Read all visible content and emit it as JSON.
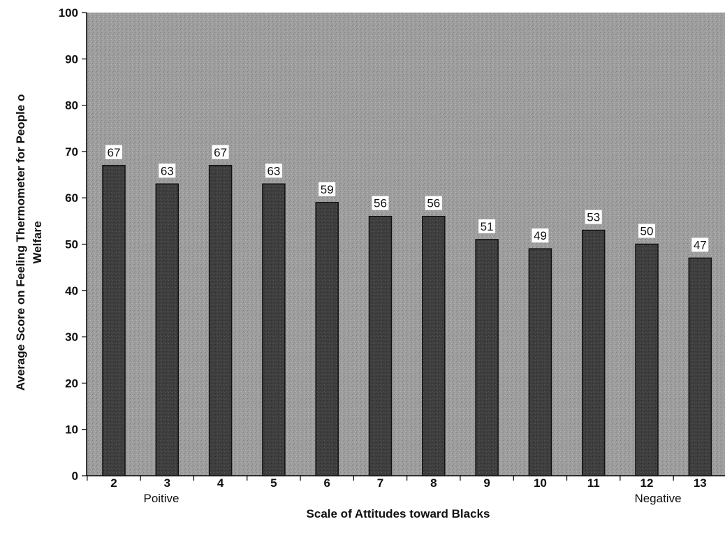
{
  "chart_data": {
    "type": "bar",
    "categories": [
      "2",
      "3",
      "4",
      "5",
      "6",
      "7",
      "8",
      "9",
      "10",
      "11",
      "12",
      "13"
    ],
    "values": [
      67,
      63,
      67,
      63,
      59,
      56,
      56,
      51,
      49,
      53,
      50,
      47
    ],
    "data_labels": [
      "67",
      "63",
      "67",
      "63",
      "59",
      "56",
      "56",
      "51",
      "49",
      "53",
      "50",
      "47"
    ],
    "title": "",
    "xlabel": "Scale of Attitudes toward Blacks",
    "ylabel_line1": "Average Score on Feeling Thermometer for People o",
    "ylabel_line2": "Welfare",
    "ylim": [
      0,
      100
    ],
    "yticks": [
      "0",
      "10",
      "20",
      "30",
      "40",
      "50",
      "60",
      "70",
      "80",
      "90",
      "100"
    ],
    "x_annotations": {
      "left": "Poitive",
      "right": "Negative"
    },
    "grid": false,
    "legend": "none",
    "colors": {
      "plot_background": "#9c9c9c",
      "bar_fill": "#3c3c3c",
      "bar_edge": "#111111",
      "label_box": "#ffffff"
    }
  }
}
